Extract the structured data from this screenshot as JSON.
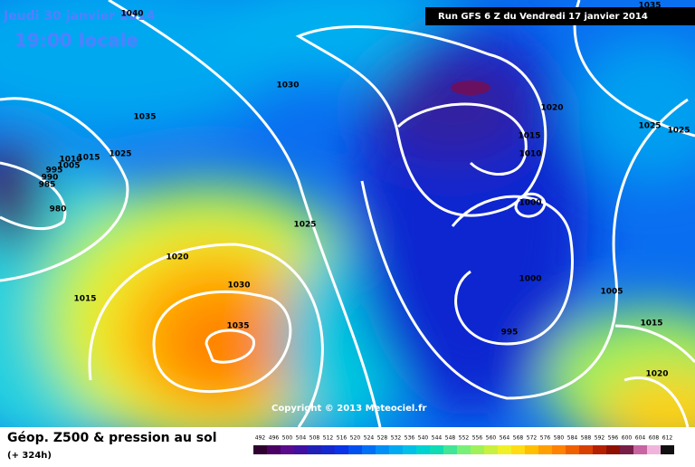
{
  "header": {
    "date": "Jeudi 30 janvier 2014",
    "time": "19:00 locale",
    "run": "Run GFS 6 Z du Vendredi 17 janvier 2014"
  },
  "isobars": [
    "1040",
    "1030",
    "1035",
    "1025",
    "1015",
    "1010",
    "1005",
    "995",
    "990",
    "985",
    "980",
    "1025",
    "1020",
    "1015",
    "1030",
    "1035",
    "1035",
    "1020",
    "1015",
    "1010",
    "1025",
    "1025",
    "1000",
    "1000",
    "995",
    "1005",
    "1015",
    "1020"
  ],
  "copyright": "Copyright © 2013 Meteociel.fr",
  "footer": {
    "title": "Géop. Z500 & pression au sol",
    "lead": "(+ 324h)"
  },
  "scale": {
    "labels": [
      492,
      496,
      500,
      504,
      508,
      512,
      516,
      520,
      524,
      528,
      532,
      536,
      540,
      544,
      548,
      552,
      556,
      560,
      564,
      568,
      572,
      576,
      580,
      584,
      588,
      592,
      596,
      600,
      604,
      608,
      612
    ],
    "colors": [
      "#300030",
      "#4b0064",
      "#5a0a8c",
      "#4010a0",
      "#2020b8",
      "#1428d0",
      "#0a32e6",
      "#0050f0",
      "#0070f5",
      "#0090f5",
      "#00aaf0",
      "#00c0e8",
      "#00d2d2",
      "#10dcb4",
      "#40e696",
      "#78f078",
      "#a0f05a",
      "#c8f040",
      "#f0f028",
      "#ffdc14",
      "#ffc000",
      "#ffa000",
      "#ff8200",
      "#f06000",
      "#d84000",
      "#b42000",
      "#901000",
      "#781e46",
      "#c864a0",
      "#f0b4dc",
      "#101010"
    ]
  }
}
